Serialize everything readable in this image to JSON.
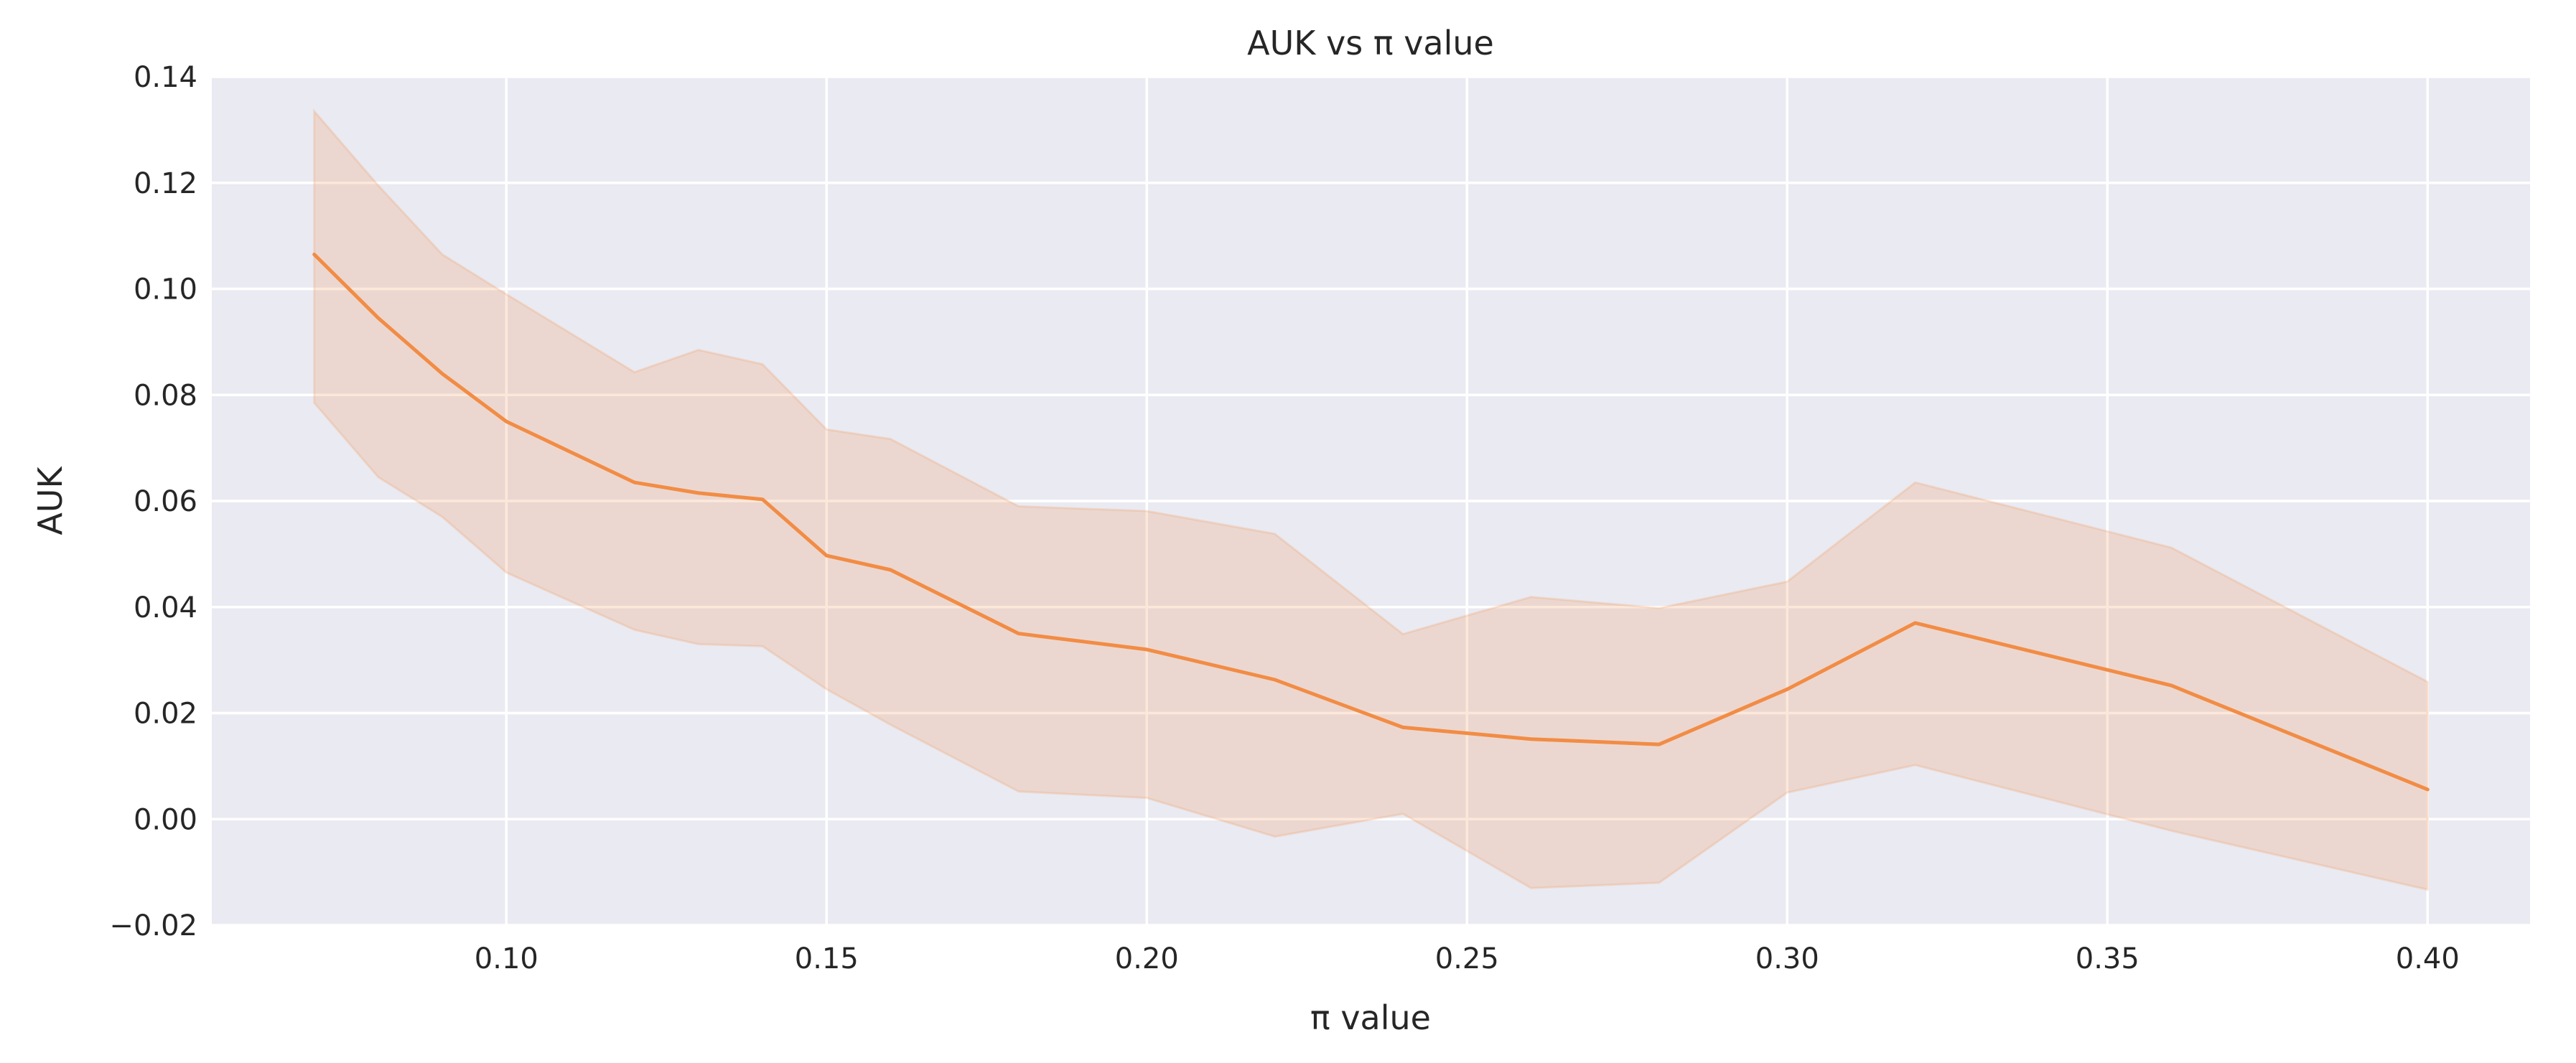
{
  "chart_data": {
    "type": "line",
    "title": "AUK vs π value",
    "xlabel": "π value",
    "ylabel": "AUK",
    "xlim": [
      0.054,
      0.416
    ],
    "ylim": [
      -0.02,
      0.14
    ],
    "x_ticks": [
      0.1,
      0.15,
      0.2,
      0.25,
      0.3,
      0.35,
      0.4
    ],
    "x_tick_labels": [
      "0.10",
      "0.15",
      "0.20",
      "0.25",
      "0.30",
      "0.35",
      "0.40"
    ],
    "y_ticks": [
      -0.02,
      0.0,
      0.02,
      0.04,
      0.06,
      0.08,
      0.1,
      0.12,
      0.14
    ],
    "y_tick_labels": [
      "−0.02",
      "0.00",
      "0.02",
      "0.04",
      "0.06",
      "0.08",
      "0.10",
      "0.12",
      "0.14"
    ],
    "grid": true,
    "background_color": "#eaeaf2",
    "series": [
      {
        "color": "#f28c45",
        "band_color": "#f28c45",
        "x": [
          0.07,
          0.08,
          0.09,
          0.1,
          0.12,
          0.13,
          0.14,
          0.15,
          0.16,
          0.18,
          0.2,
          0.22,
          0.24,
          0.26,
          0.28,
          0.3,
          0.32,
          0.36,
          0.4
        ],
        "y": [
          0.1065,
          0.0945,
          0.084,
          0.075,
          0.0635,
          0.0615,
          0.0603,
          0.0497,
          0.047,
          0.035,
          0.032,
          0.0263,
          0.0173,
          0.0151,
          0.0141,
          0.0245,
          0.037,
          0.0252,
          0.0056
        ],
        "upper": [
          0.1335,
          0.1195,
          0.1065,
          0.099,
          0.0843,
          0.0885,
          0.0858,
          0.0735,
          0.0717,
          0.059,
          0.0581,
          0.0538,
          0.0349,
          0.0419,
          0.0398,
          0.0448,
          0.0635,
          0.0512,
          0.0259
        ],
        "lower": [
          0.0785,
          0.0645,
          0.057,
          0.0465,
          0.0357,
          0.033,
          0.0326,
          0.0245,
          0.0178,
          0.0052,
          0.004,
          -0.0033,
          0.001,
          -0.013,
          -0.012,
          0.005,
          0.0102,
          -0.0022,
          -0.0133
        ]
      }
    ]
  }
}
